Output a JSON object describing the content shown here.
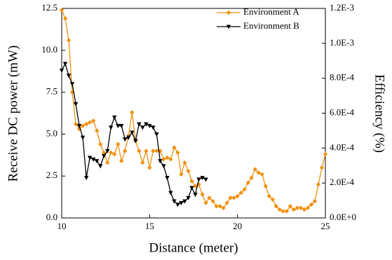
{
  "chart_data": {
    "type": "line",
    "xlabel": "Distance (meter)",
    "ylabel": "Receive DC power (mW)",
    "y2label": "Efficiency (%)",
    "xlim": [
      10,
      25
    ],
    "xticks": [
      10,
      15,
      20,
      25
    ],
    "ylim": [
      0,
      12.5
    ],
    "yticks": [
      {
        "value": 0,
        "label": "0.0"
      },
      2.5,
      {
        "value": 5,
        "label": "5.0"
      },
      7.5,
      {
        "value": 10,
        "label": "10.0"
      },
      12.5
    ],
    "y2lim": [
      0,
      0.0012
    ],
    "y2ticks": [
      {
        "value": 0,
        "label": "0.0E+0"
      },
      {
        "value": 0.0002,
        "label": "2.0E-4"
      },
      {
        "value": 0.0004,
        "label": "4.0E-4"
      },
      {
        "value": 0.0006,
        "label": "6.0E-4"
      },
      {
        "value": 0.0008,
        "label": "8.0E-4"
      },
      {
        "value": 0.001,
        "label": "1.0E-3"
      },
      {
        "value": 0.0012,
        "label": "1.2E-3"
      }
    ],
    "legend": "upper right",
    "series": [
      {
        "name": "Environment A",
        "color": "#f0900f",
        "marker": "diamond",
        "x": [
          10,
          10.2,
          10.4,
          10.6,
          10.8,
          11,
          11.2,
          11.4,
          11.6,
          11.8,
          12,
          12.2,
          12.4,
          12.6,
          12.8,
          13,
          13.2,
          13.4,
          13.6,
          13.8,
          14,
          14.2,
          14.4,
          14.6,
          14.8,
          15,
          15.2,
          15.4,
          15.6,
          15.8,
          16,
          16.2,
          16.4,
          16.6,
          16.8,
          17,
          17.2,
          17.4,
          17.6,
          17.8,
          18,
          18.2,
          18.4,
          18.6,
          18.8,
          19,
          19.2,
          19.4,
          19.6,
          19.8,
          20,
          20.2,
          20.4,
          20.6,
          20.8,
          21,
          21.2,
          21.4,
          21.6,
          21.8,
          22,
          22.2,
          22.4,
          22.6,
          22.8,
          23,
          23.2,
          23.4,
          23.6,
          23.8,
          24,
          24.2,
          24.4,
          24.6,
          24.8,
          25
        ],
        "values": [
          12.4,
          11.9,
          10.6,
          7.5,
          5.6,
          5.3,
          5.5,
          5.6,
          5.7,
          5.8,
          5.2,
          4.4,
          3.9,
          3.3,
          3.9,
          3.8,
          4.4,
          3.4,
          4.0,
          4.9,
          6.3,
          4.6,
          4.0,
          3.3,
          4.0,
          3.0,
          4.0,
          4.0,
          4.0,
          3.5,
          3.6,
          3.5,
          4.2,
          3.9,
          2.6,
          3.3,
          2.8,
          2.2,
          1.9,
          2.0,
          1.4,
          0.9,
          1.2,
          1.0,
          0.7,
          0.7,
          0.6,
          0.9,
          1.2,
          1.2,
          1.3,
          1.5,
          1.7,
          2.1,
          2.4,
          2.9,
          2.7,
          2.6,
          1.9,
          1.3,
          1.1,
          0.7,
          0.5,
          0.4,
          0.4,
          0.7,
          0.5,
          0.6,
          0.6,
          0.5,
          0.6,
          0.8,
          1.0,
          2.0,
          3.0,
          3.8
        ]
      },
      {
        "name": "Environment B",
        "color": "#000000",
        "marker": "triangle-down",
        "x": [
          10,
          10.2,
          10.4,
          10.6,
          10.8,
          11,
          11.2,
          11.4,
          11.6,
          11.8,
          12,
          12.2,
          12.4,
          12.6,
          12.8,
          13,
          13.2,
          13.4,
          13.6,
          13.8,
          14,
          14.2,
          14.4,
          14.6,
          14.8,
          15,
          15.2,
          15.4,
          15.6,
          15.8,
          16,
          16.2,
          16.4,
          16.6,
          16.8,
          17,
          17.2,
          17.4,
          17.6,
          17.8,
          18,
          18.2
        ],
        "values": [
          8.8,
          9.2,
          8.5,
          8.0,
          6.8,
          5.5,
          4.8,
          2.4,
          3.6,
          3.5,
          3.4,
          3.1,
          3.7,
          4.0,
          5.4,
          6.0,
          5.5,
          5.5,
          4.7,
          4.8,
          5.1,
          4.6,
          5.6,
          5.4,
          5.6,
          5.5,
          5.4,
          5.0,
          3.4,
          3.1,
          2.4,
          1.5,
          1.0,
          0.8,
          0.9,
          1.0,
          1.2,
          1.8,
          1.4,
          2.3,
          2.4,
          2.3
        ]
      }
    ]
  }
}
